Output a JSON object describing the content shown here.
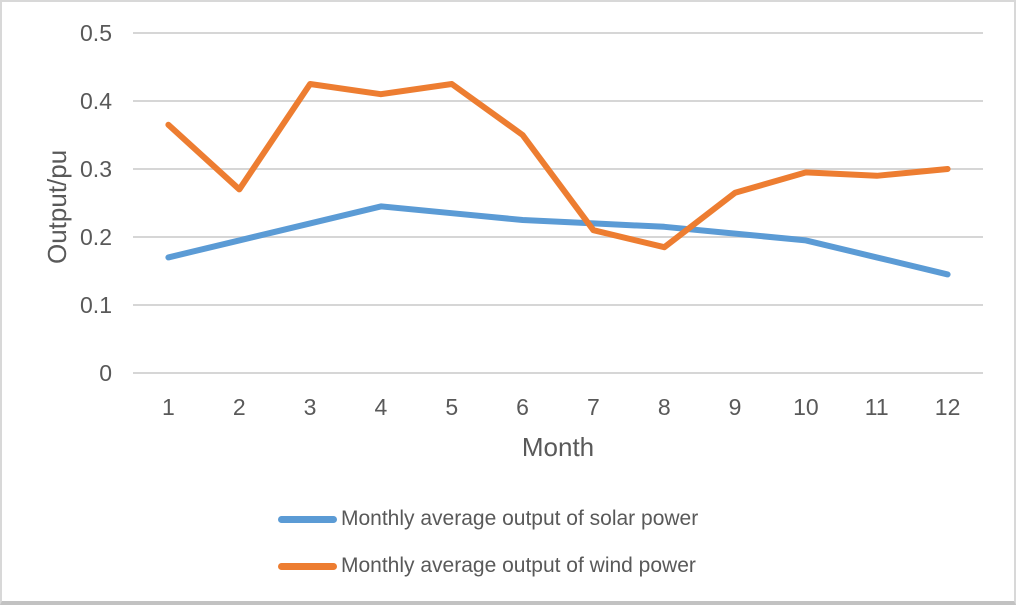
{
  "chart_data": {
    "type": "line",
    "title": "",
    "xlabel": "Month",
    "ylabel": "Output/pu",
    "x": [
      1,
      2,
      3,
      4,
      5,
      6,
      7,
      8,
      9,
      10,
      11,
      12
    ],
    "x_tick_labels": [
      "1",
      "2",
      "3",
      "4",
      "5",
      "6",
      "7",
      "8",
      "9",
      "10",
      "11",
      "12"
    ],
    "y_tick_labels": [
      "0",
      "0.1",
      "0.2",
      "0.3",
      "0.4",
      "0.5"
    ],
    "ylim": [
      0,
      0.5
    ],
    "grid": "horizontal",
    "legend_position": "bottom",
    "series": [
      {
        "name": "Monthly average output of solar power",
        "color": "#5B9BD5",
        "values": [
          0.17,
          0.195,
          0.22,
          0.245,
          0.235,
          0.225,
          0.22,
          0.215,
          0.205,
          0.195,
          0.17,
          0.145
        ]
      },
      {
        "name": "Monthly average output of wind power",
        "color": "#ED7D31",
        "values": [
          0.365,
          0.27,
          0.425,
          0.41,
          0.425,
          0.35,
          0.21,
          0.185,
          0.265,
          0.295,
          0.29,
          0.3
        ]
      }
    ]
  },
  "colors": {
    "gridline": "#D6D6D6",
    "axis_text": "#595959",
    "frame_border": "#D8D8D8"
  }
}
